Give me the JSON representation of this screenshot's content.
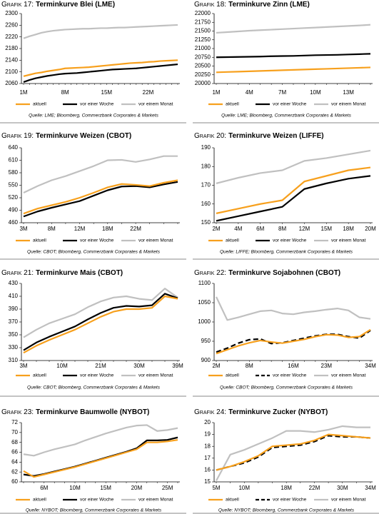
{
  "chart_data": [
    {
      "type": "line",
      "label": "Grafik 17:",
      "title": "Terminkurve Blei (LME)",
      "categories": [
        "1M",
        null,
        null,
        null,
        null,
        null,
        null,
        "8M",
        null,
        null,
        null,
        null,
        null,
        null,
        "15M",
        null,
        null,
        null,
        null,
        null,
        null,
        "22M",
        null,
        null,
        null,
        null,
        null
      ],
      "series": [
        {
          "name": "aktuell",
          "color": "#f7a01d",
          "values": [
            2085,
            2090,
            2095,
            2098,
            2102,
            2105,
            2108,
            2112,
            2113,
            2114,
            2115,
            2116,
            2118,
            2120,
            2122,
            2124,
            2126,
            2128,
            2130,
            2131,
            2132,
            2134,
            2135,
            2137,
            2138,
            2139,
            2140
          ]
        },
        {
          "name": "vor einer Woche",
          "color": "#000000",
          "values": [
            2065,
            2072,
            2078,
            2082,
            2086,
            2089,
            2092,
            2094,
            2095,
            2096,
            2098,
            2100,
            2102,
            2104,
            2106,
            2108,
            2109,
            2110,
            2111,
            2112,
            2114,
            2116,
            2118,
            2120,
            2122,
            2124,
            2126
          ]
        },
        {
          "name": "vor einem Monat",
          "color": "#c0c0c0",
          "values": [
            2215,
            2222,
            2228,
            2234,
            2238,
            2241,
            2243,
            2245,
            2246,
            2247,
            2248,
            2248,
            2249,
            2250,
            2250,
            2251,
            2252,
            2252,
            2253,
            2254,
            2255,
            2256,
            2257,
            2258,
            2259,
            2260,
            2261
          ]
        }
      ],
      "ylim": [
        2060,
        2300
      ],
      "yticks": [
        2060,
        2100,
        2140,
        2180,
        2220,
        2260,
        2300
      ],
      "source": "Quelle: LME; Bloomberg, Commerzbank Corporates & Markets"
    },
    {
      "type": "line",
      "label": "Grafik 18:",
      "title": "Terminkurve Zinn (LME)",
      "categories": [
        "1M",
        null,
        null,
        "4M",
        null,
        null,
        "7M",
        null,
        null,
        "10M",
        null,
        null,
        "13M",
        null,
        null
      ],
      "series": [
        {
          "name": "aktuell",
          "color": "#f7a01d",
          "values": [
            20320,
            20330,
            20340,
            20350,
            20360,
            20370,
            20380,
            20390,
            20400,
            20410,
            20420,
            20430,
            20440,
            20450,
            20460
          ]
        },
        {
          "name": "vor einer Woche",
          "color": "#000000",
          "values": [
            20750,
            20755,
            20760,
            20765,
            20770,
            20780,
            20785,
            20790,
            20800,
            20810,
            20815,
            20820,
            20830,
            20840,
            20850
          ]
        },
        {
          "name": "vor einem Monat",
          "color": "#c0c0c0",
          "values": [
            21450,
            21470,
            21490,
            21510,
            21525,
            21540,
            21555,
            21570,
            21585,
            21600,
            21615,
            21630,
            21645,
            21660,
            21680
          ]
        }
      ],
      "ylim": [
        20000,
        22000
      ],
      "yticks": [
        20000,
        20250,
        20500,
        20750,
        21000,
        21250,
        21500,
        21750,
        22000
      ],
      "source": "Quelle: LME; Bloomberg, Commerzbank Corporates & Markets"
    },
    {
      "type": "line",
      "label": "Grafik 19:",
      "title": "Terminkurve Weizen (CBOT)",
      "categories": [
        "3M",
        null,
        "8M",
        null,
        "12M",
        null,
        "18M",
        null,
        "22M",
        null,
        null,
        null
      ],
      "series": [
        {
          "name": "aktuell",
          "color": "#f7a01d",
          "values": [
            482,
            494,
            502,
            510,
            520,
            532,
            545,
            553,
            551,
            548,
            556,
            562
          ]
        },
        {
          "name": "vor einer Woche",
          "color": "#000000",
          "values": [
            475,
            487,
            496,
            504,
            512,
            525,
            538,
            547,
            548,
            545,
            552,
            558
          ]
        },
        {
          "name": "vor einem Monat",
          "color": "#c0c0c0",
          "values": [
            532,
            548,
            562,
            572,
            584,
            596,
            610,
            611,
            606,
            612,
            620,
            620
          ]
        }
      ],
      "ylim": [
        460,
        640
      ],
      "yticks": [
        460,
        490,
        520,
        550,
        580,
        610,
        640
      ],
      "source": "Quelle: CBOT; Bloomberg, Commerzbank Corporates & Markets"
    },
    {
      "type": "line",
      "label": "Grafik 20:",
      "title": "Terminkurve Weizen (LIFFE)",
      "categories": [
        "2M",
        "4M",
        "6M",
        "8M",
        "12M",
        "15M",
        "18M",
        "20M"
      ],
      "series": [
        {
          "name": "aktuell",
          "color": "#f7a01d",
          "values": [
            155,
            157.5,
            160,
            162,
            172,
            175,
            178,
            179.5
          ]
        },
        {
          "name": "vor einer Woche",
          "color": "#000000",
          "values": [
            151,
            153.5,
            156,
            158.5,
            168,
            171,
            173.5,
            175
          ]
        },
        {
          "name": "vor einem Monat",
          "color": "#c0c0c0",
          "values": [
            171,
            174,
            176.5,
            178,
            183,
            184.5,
            186.5,
            188.5
          ]
        }
      ],
      "ylim": [
        150,
        190
      ],
      "yticks": [
        150,
        160,
        170,
        180,
        190
      ],
      "source": "Quelle: LIFFE; Bloomberg, Commerzbank Corporates & Markets"
    },
    {
      "type": "line",
      "label": "Grafik 21:",
      "title": "Terminkurve Mais (CBOT)",
      "categories": [
        "3M",
        null,
        null,
        "10M",
        null,
        null,
        "21M",
        null,
        null,
        "30M",
        null,
        null,
        "39M"
      ],
      "series": [
        {
          "name": "aktuell",
          "color": "#f7a01d",
          "values": [
            322,
            333,
            342,
            350,
            358,
            368,
            378,
            386,
            390,
            390,
            392,
            410,
            406
          ]
        },
        {
          "name": "vor einer Woche",
          "color": "#000000",
          "values": [
            326,
            338,
            347,
            355,
            363,
            374,
            384,
            392,
            395,
            394,
            396,
            414,
            407
          ]
        },
        {
          "name": "vor einem Monat",
          "color": "#c0c0c0",
          "values": [
            346,
            358,
            368,
            375,
            382,
            393,
            402,
            408,
            410,
            406,
            404,
            422,
            408
          ]
        }
      ],
      "ylim": [
        310,
        430
      ],
      "yticks": [
        310,
        330,
        350,
        370,
        390,
        410,
        430
      ],
      "source": "Quelle: CBOT; Bloomberg, Commerzbank Corporates & Markets"
    },
    {
      "type": "line",
      "label": "Grafik 22:",
      "title": "Terminkurve Sojabohnen (CBOT)",
      "categories": [
        "2M",
        null,
        null,
        "8M",
        null,
        null,
        null,
        "16M",
        null,
        null,
        "23M",
        null,
        null,
        null,
        "34M"
      ],
      "series": [
        {
          "name": "aktuell",
          "color": "#f7a01d",
          "values": [
            918,
            928,
            938,
            946,
            952,
            948,
            945,
            950,
            955,
            962,
            967,
            966,
            960,
            962,
            980
          ]
        },
        {
          "name": "vor einer Woche",
          "color": "#000000",
          "dashed": true,
          "values": [
            922,
            932,
            945,
            954,
            956,
            944,
            946,
            952,
            958,
            964,
            968,
            968,
            962,
            958,
            978
          ]
        },
        {
          "name": "vor einem Monat",
          "color": "#c0c0c0",
          "values": [
            1065,
            1005,
            1012,
            1020,
            1028,
            1030,
            1022,
            1020,
            1025,
            1028,
            1032,
            1035,
            1030,
            1012,
            1008
          ]
        }
      ],
      "ylim": [
        900,
        1100
      ],
      "yticks": [
        900,
        950,
        1000,
        1050,
        1100
      ],
      "source": "Quelle: CBOT; Bloomberg, Commerzbank Corporates & Markets"
    },
    {
      "type": "line",
      "label": "Grafik 23:",
      "title": "Terminkurve Baumwolle (NYBOT)",
      "categories": [
        null,
        null,
        "6M",
        null,
        null,
        "10M",
        null,
        null,
        "15M",
        null,
        null,
        "20M",
        null,
        null,
        "25M",
        null
      ],
      "series": [
        {
          "name": "aktuell",
          "color": "#f7a01d",
          "values": [
            62.2,
            61.0,
            61.5,
            62.0,
            62.5,
            63.0,
            63.6,
            64.2,
            64.8,
            65.4,
            66.0,
            66.6,
            68.0,
            68.0,
            68.2,
            68.5
          ]
        },
        {
          "name": "vor einer Woche",
          "color": "#000000",
          "values": [
            61.5,
            61.2,
            61.6,
            62.1,
            62.6,
            63.1,
            63.7,
            64.3,
            64.9,
            65.5,
            66.1,
            66.8,
            68.4,
            68.4,
            68.5,
            69.0
          ]
        },
        {
          "name": "vor einem Monat",
          "color": "#c0c0c0",
          "values": [
            65.6,
            65.3,
            66.0,
            66.6,
            67.1,
            67.6,
            68.4,
            69.1,
            69.8,
            70.4,
            71.0,
            71.4,
            71.5,
            70.3,
            70.5,
            70.9
          ]
        }
      ],
      "ylim": [
        60,
        72
      ],
      "yticks": [
        60,
        62,
        64,
        66,
        68,
        70,
        72
      ],
      "source": "Quelle: NYBOT; Bloomberg, Commerzbank Corporates & Markets"
    },
    {
      "type": "line",
      "label": "Grafik 24:",
      "title": "Terminkurve Zucker (NYBOT)",
      "categories": [
        "5M",
        null,
        "10M",
        null,
        null,
        "18M",
        null,
        "22M",
        null,
        "30M",
        null,
        "34M"
      ],
      "series": [
        {
          "name": "aktuell",
          "color": "#f7a01d",
          "values": [
            16.0,
            16.3,
            16.7,
            17.2,
            18.0,
            18.1,
            18.2,
            18.5,
            19.0,
            18.9,
            18.8,
            18.7
          ]
        },
        {
          "name": "vor einer Woche",
          "color": "#000000",
          "dashed": true,
          "values": [
            16.0,
            16.3,
            16.6,
            17.1,
            17.9,
            18.0,
            18.1,
            18.4,
            18.9,
            18.8,
            18.8,
            18.7
          ]
        },
        {
          "name": "vor einem Monat",
          "color": "#c0c0c0",
          "values": [
            15.1,
            17.3,
            17.7,
            18.2,
            18.7,
            19.3,
            19.3,
            19.2,
            19.4,
            19.7,
            19.6,
            19.6
          ]
        }
      ],
      "ylim": [
        15,
        20
      ],
      "yticks": [
        15,
        16,
        17,
        18,
        19,
        20
      ],
      "source": "Quelle: NYBOT; Bloomberg, Commerzbank Corporates & Markets"
    }
  ]
}
